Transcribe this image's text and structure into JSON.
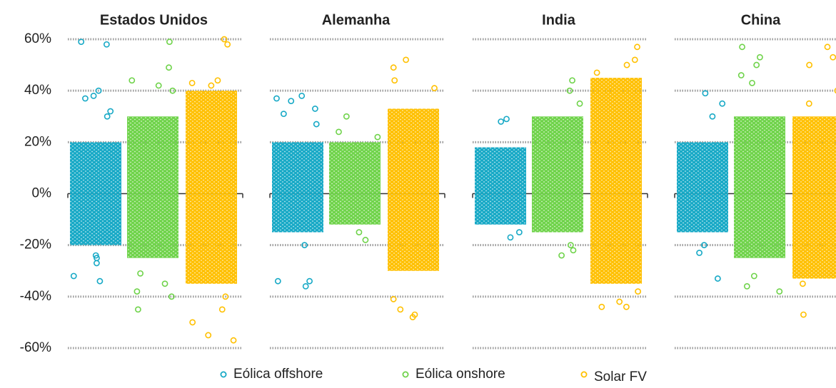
{
  "chart_data": {
    "type": "strip",
    "ylim": [
      -60,
      60
    ],
    "yticks": [
      {
        "value": -60,
        "label": "-60%"
      },
      {
        "value": -40,
        "label": "-40%"
      },
      {
        "value": -20,
        "label": "-20%"
      },
      {
        "value": 0,
        "label": "0%"
      },
      {
        "value": 20,
        "label": "20%"
      },
      {
        "value": 40,
        "label": "40%"
      },
      {
        "value": 60,
        "label": "60%"
      }
    ],
    "grid": true,
    "legend": "bottom",
    "series": [
      {
        "name": "Eólica offshore",
        "color": "#17a9c6"
      },
      {
        "name": "Eólica onshore",
        "color": "#6fd34a"
      },
      {
        "name": "Solar FV",
        "color": "#ffc000"
      }
    ],
    "panels": [
      {
        "title": "Estados Unidos",
        "cores": [
          [
            -20,
            20
          ],
          [
            -25,
            30
          ],
          [
            -35,
            40
          ]
        ],
        "points": [
          [
            59,
            58,
            40,
            38,
            37,
            32,
            30,
            -24,
            -25,
            -27,
            -32,
            -34
          ],
          [
            59,
            49,
            44,
            42,
            40,
            -31,
            -35,
            -38,
            -40,
            -45
          ],
          [
            60,
            58,
            44,
            43,
            42,
            -40,
            -45,
            -50,
            -55,
            -57
          ]
        ]
      },
      {
        "title": "Alemanha",
        "cores": [
          [
            -15,
            20
          ],
          [
            -12,
            20
          ],
          [
            -30,
            33
          ]
        ],
        "points": [
          [
            38,
            37,
            36,
            33,
            31,
            27,
            -20,
            -34,
            -34,
            -36
          ],
          [
            30,
            24,
            22,
            -15,
            -18
          ],
          [
            52,
            49,
            44,
            41,
            -41,
            -45,
            -47,
            -48
          ]
        ]
      },
      {
        "title": "India",
        "cores": [
          [
            -12,
            18
          ],
          [
            -15,
            30
          ],
          [
            -35,
            45
          ]
        ],
        "points": [
          [
            29,
            28,
            -15,
            -17
          ],
          [
            44,
            40,
            35,
            -20,
            -22,
            -24
          ],
          [
            57,
            52,
            50,
            47,
            -38,
            -42,
            -44,
            -44
          ]
        ]
      },
      {
        "title": "China",
        "cores": [
          [
            -15,
            20
          ],
          [
            -25,
            30
          ],
          [
            -33,
            30
          ]
        ],
        "points": [
          [
            39,
            35,
            30,
            -20,
            -23,
            -33
          ],
          [
            57,
            53,
            50,
            46,
            43,
            -32,
            -36,
            -38
          ],
          [
            57,
            53,
            50,
            40,
            35,
            -35,
            -40,
            -47
          ]
        ]
      }
    ]
  }
}
